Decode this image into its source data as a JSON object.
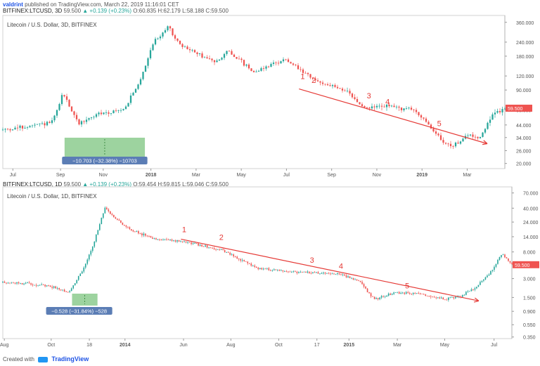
{
  "header": {
    "user": "valdrint",
    "published": "published on TradingView.com, March 22, 2019 11:16:01 CET",
    "symbol": "BITFINEX:LTCUSD, 3D",
    "price": "59.500",
    "change": "▲ +0.139 (+0.23%)",
    "ohlc": "O:60.835 H:62.179 L:58.188 C:59.500"
  },
  "header2": {
    "symbol": "BITFINEX:LTCUSD, 1D",
    "price": "59.500",
    "change": "▲ +0.139 (+0.23%)",
    "ohlc": "O:59.454 H:59.815 L:59.046 C:59.500"
  },
  "footer": {
    "created": "Created with",
    "brand": "TradingView"
  },
  "colors": {
    "up": "#26a69a",
    "down": "#ef5350",
    "trend": "#e53935",
    "measure": "#4caf50",
    "badge": "#5b7db5"
  },
  "chart_data": [
    {
      "type": "candlestick",
      "title": "Litecoin / U.S. Dollar, 3D, BITFINEX",
      "scale": "log",
      "ylim": [
        18,
        380
      ],
      "yticks": [
        "360.000",
        "240.000",
        "180.000",
        "120.000",
        "90.000",
        "60.000",
        "44.000",
        "34.000",
        "26.000",
        "20.000"
      ],
      "xticks": [
        "Jul",
        "Sep",
        "Nov",
        "2018",
        "Mar",
        "May",
        "Jul",
        "Sep",
        "Nov",
        "2019",
        "Mar"
      ],
      "path": [
        [
          0,
          40
        ],
        [
          0.06,
          43
        ],
        [
          0.1,
          47
        ],
        [
          0.12,
          85
        ],
        [
          0.15,
          45
        ],
        [
          0.19,
          55
        ],
        [
          0.24,
          60
        ],
        [
          0.27,
          100
        ],
        [
          0.3,
          240
        ],
        [
          0.33,
          330
        ],
        [
          0.35,
          230
        ],
        [
          0.42,
          160
        ],
        [
          0.45,
          200
        ],
        [
          0.5,
          130
        ],
        [
          0.56,
          170
        ],
        [
          0.62,
          110
        ],
        [
          0.68,
          90
        ],
        [
          0.72,
          62
        ],
        [
          0.76,
          65
        ],
        [
          0.82,
          60
        ],
        [
          0.86,
          38
        ],
        [
          0.89,
          28
        ],
        [
          0.93,
          36
        ],
        [
          0.95,
          34
        ],
        [
          0.975,
          54
        ],
        [
          1,
          62
        ]
      ],
      "trendline_labels": [
        "1",
        "2",
        "3",
        "4",
        "5"
      ],
      "measure_label": "−10.703 (−32.38%) −10703"
    },
    {
      "type": "candlestick",
      "title": "Litecoin / U.S. Dollar, 1D, BITFINEX",
      "scale": "log",
      "ylim": [
        0.33,
        75
      ],
      "yticks": [
        "70.000",
        "40.000",
        "24.000",
        "14.000",
        "8.000",
        "5.000",
        "3.000",
        "1.500",
        "0.900",
        "0.550",
        "0.350"
      ],
      "xticks": [
        "Aug",
        "Oct",
        "18",
        "2014",
        "Jun",
        "Aug",
        "Oct",
        "17",
        "2015",
        "Mar",
        "May",
        "Jul"
      ],
      "path": [
        [
          0,
          2.6
        ],
        [
          0.05,
          2.5
        ],
        [
          0.1,
          2.2
        ],
        [
          0.13,
          1.8
        ],
        [
          0.16,
          4.5
        ],
        [
          0.18,
          12
        ],
        [
          0.2,
          40
        ],
        [
          0.22,
          28
        ],
        [
          0.25,
          18
        ],
        [
          0.3,
          13
        ],
        [
          0.36,
          11.5
        ],
        [
          0.43,
          8.5
        ],
        [
          0.5,
          4.4
        ],
        [
          0.58,
          3.8
        ],
        [
          0.66,
          3.6
        ],
        [
          0.7,
          2.7
        ],
        [
          0.73,
          1.4
        ],
        [
          0.77,
          1.8
        ],
        [
          0.82,
          1.7
        ],
        [
          0.87,
          1.4
        ],
        [
          0.9,
          1.6
        ],
        [
          0.93,
          2.2
        ],
        [
          0.96,
          4.0
        ],
        [
          0.98,
          7.5
        ],
        [
          1,
          5
        ]
      ],
      "trendline_labels": [
        "1",
        "2",
        "3",
        "4",
        "5"
      ],
      "measure_label": "−0.528 (−31.84%) −528"
    }
  ]
}
